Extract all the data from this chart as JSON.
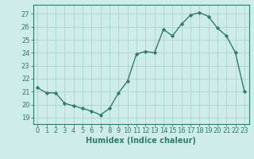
{
  "x": [
    0,
    1,
    2,
    3,
    4,
    5,
    6,
    7,
    8,
    9,
    10,
    11,
    12,
    13,
    14,
    15,
    16,
    17,
    18,
    19,
    20,
    21,
    22,
    23
  ],
  "y": [
    21.3,
    20.9,
    20.9,
    20.1,
    19.9,
    19.7,
    19.5,
    19.2,
    19.7,
    20.9,
    21.8,
    23.9,
    24.1,
    24.0,
    25.8,
    25.3,
    26.2,
    26.9,
    27.1,
    26.8,
    25.9,
    25.3,
    24.0,
    21.0
  ],
  "xlabel": "Humidex (Indice chaleur)",
  "ylim": [
    18.5,
    27.7
  ],
  "xlim": [
    -0.5,
    23.5
  ],
  "yticks": [
    19,
    20,
    21,
    22,
    23,
    24,
    25,
    26,
    27
  ],
  "xticks": [
    0,
    1,
    2,
    3,
    4,
    5,
    6,
    7,
    8,
    9,
    10,
    11,
    12,
    13,
    14,
    15,
    16,
    17,
    18,
    19,
    20,
    21,
    22,
    23
  ],
  "line_color": "#2e7d6e",
  "marker": "D",
  "marker_size": 2.2,
  "bg_color": "#cdecea",
  "grid_color": "#a8d5d0",
  "xlabel_fontsize": 7,
  "tick_fontsize": 6,
  "line_width": 1.0
}
